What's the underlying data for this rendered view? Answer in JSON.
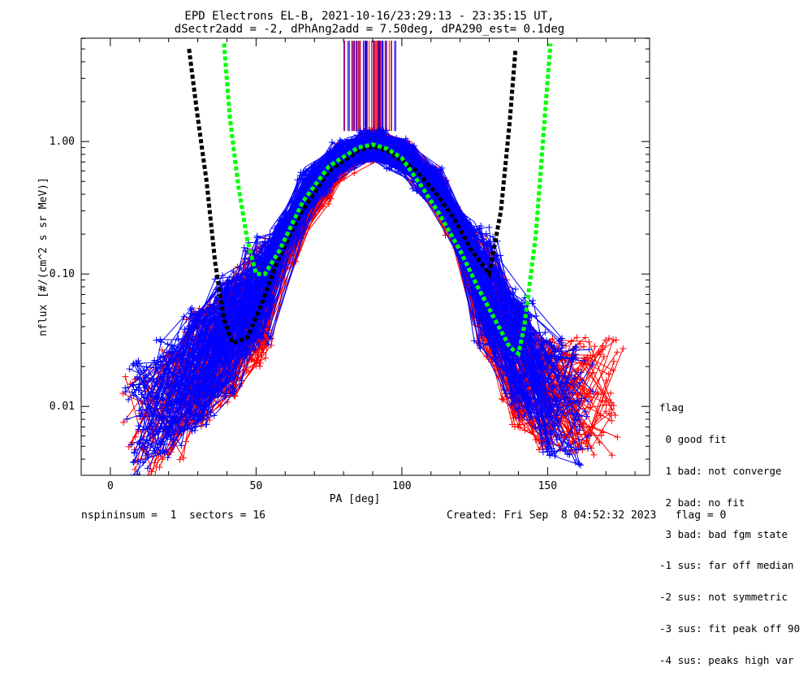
{
  "chart_data": {
    "type": "scatter",
    "title": "EPD Electrons EL-B, 2021-10-16/23:29:13 - 23:35:15 UT,",
    "subtitle": "dSectr2add = -2, dPhAng2add = 7.50deg, dPA290_est=   0.1deg",
    "xlabel": "PA [deg]",
    "ylabel": "nflux [#/(cm^2 s sr MeV)]",
    "xlim": [
      -10,
      185
    ],
    "ylim_log10": [
      -2.52,
      0.78
    ],
    "x_ticks": [
      {
        "v": 0,
        "label": "0"
      },
      {
        "v": 50,
        "label": "50"
      },
      {
        "v": 100,
        "label": "100"
      },
      {
        "v": 150,
        "label": "150"
      }
    ],
    "y_ticks": [
      {
        "v": 0.01,
        "label": "0.01"
      },
      {
        "v": 0.1,
        "label": "0.10"
      },
      {
        "v": 1.0,
        "label": "1.00"
      }
    ],
    "y_scale": "log",
    "grid": false,
    "series": [
      {
        "color": "#ff0000",
        "marker": "+",
        "values_x": [
          10,
          20,
          30,
          40,
          50,
          60,
          70,
          80,
          90,
          100,
          110,
          120,
          130,
          140,
          150,
          160,
          170
        ],
        "values_y": [
          0.006,
          0.01,
          0.02,
          0.03,
          0.06,
          0.15,
          0.4,
          0.75,
          0.95,
          0.8,
          0.5,
          0.2,
          0.06,
          0.02,
          0.012,
          0.012,
          0.012
        ]
      },
      {
        "color": "#0000ff",
        "marker": "+",
        "values_x": [
          10,
          20,
          30,
          40,
          50,
          60,
          70,
          80,
          90,
          100,
          110,
          120,
          130,
          140,
          150,
          160
        ],
        "values_y": [
          0.008,
          0.012,
          0.02,
          0.035,
          0.07,
          0.2,
          0.5,
          0.8,
          0.95,
          0.8,
          0.5,
          0.22,
          0.07,
          0.025,
          0.012,
          0.01
        ]
      }
    ],
    "fit_curves": [
      {
        "color": "#000000",
        "style": "dashed",
        "points": [
          [
            27,
            5.0
          ],
          [
            30,
            1.5
          ],
          [
            33,
            0.5
          ],
          [
            36,
            0.12
          ],
          [
            39,
            0.045
          ],
          [
            42,
            0.03
          ],
          [
            47,
            0.033
          ],
          [
            52,
            0.06
          ],
          [
            57,
            0.12
          ],
          [
            65,
            0.28
          ],
          [
            75,
            0.6
          ],
          [
            85,
            0.85
          ],
          [
            90,
            0.92
          ],
          [
            95,
            0.85
          ],
          [
            105,
            0.6
          ],
          [
            112,
            0.4
          ],
          [
            118,
            0.26
          ],
          [
            124,
            0.15
          ],
          [
            130,
            0.1
          ],
          [
            134,
            0.3
          ],
          [
            137,
            1.4
          ],
          [
            139,
            5.0
          ]
        ]
      },
      {
        "color": "#00ff00",
        "style": "dashed",
        "points": [
          [
            39,
            5.5
          ],
          [
            41,
            1.5
          ],
          [
            44,
            0.45
          ],
          [
            47,
            0.18
          ],
          [
            50,
            0.1
          ],
          [
            53,
            0.1
          ],
          [
            58,
            0.15
          ],
          [
            66,
            0.35
          ],
          [
            75,
            0.65
          ],
          [
            85,
            0.9
          ],
          [
            90,
            0.95
          ],
          [
            95,
            0.88
          ],
          [
            100,
            0.75
          ],
          [
            107,
            0.45
          ],
          [
            113,
            0.28
          ],
          [
            120,
            0.15
          ],
          [
            126,
            0.08
          ],
          [
            132,
            0.045
          ],
          [
            137,
            0.028
          ],
          [
            140,
            0.025
          ],
          [
            142,
            0.04
          ],
          [
            146,
            0.2
          ],
          [
            149,
            1.5
          ],
          [
            151,
            5.5
          ]
        ]
      }
    ],
    "spikes": {
      "x_range": [
        80,
        98
      ],
      "y_range": [
        1.2,
        5.0
      ]
    }
  },
  "legend": {
    "title": "flag",
    "items": [
      " 0 good fit",
      " 1 bad: not converge",
      " 2 bad: no fit",
      " 3 bad: bad fgm state",
      "-1 sus: far off median",
      "-2 sus: not symmetric",
      "-3 sus: fit peak off 90",
      "-4 sus: peaks high var"
    ]
  },
  "footer": {
    "left": "nspininsum =  1  sectors = 16",
    "right": "Created: Fri Sep  8 04:52:32 2023   flag = 0"
  }
}
